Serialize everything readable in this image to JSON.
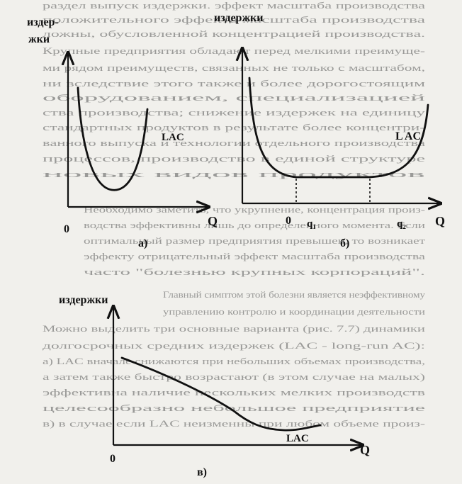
{
  "background_text": [
    "раздел выпуск издержки. эффект масштаба производства",
    "положительного эффекта масштаба производства",
    "ложны, обусловленной концентрацией производства.",
    "Крупные предприятия обладают перед мелкими преимуще-",
    "ми рядом преимуществ, связанных не только с масштабом,",
    "ни вследствие этого также и более дорогостоящим",
    "оборудованием, специализацией",
    "ства производства; снижение издержек на единицу",
    "стандартных продуктов в результате более концентри-",
    "ванного выпуска и технологии отдельного производства",
    "процессов, производство в единой структуре",
    "новых видов продуктов",
    "Необходимо заметить, что укрупнение, концентрация произ-",
    "водства эффективны лишь до определенного момента. Если",
    "оптимальный размер предприятия превышен, то возникает",
    "эффекту отрицательный эффект масштаба производства",
    "часто \"болезнью крупных корпораций\".",
    "Главный симптом этой болезни является неэффективному",
    "управлению контролю и координации деятельности",
    "Можно выделить три основные варианта (рис. 7.7) динамики",
    "долгосрочных средних издержек (LAC - long-run AC):",
    "а) LAC вначале снижаются при небольших объемах производства,",
    "а затем также быстро возрастают (в этом случае на малых)",
    "эффективна наличие нескольких мелких производств",
    "целесообразно небольшое предприятие",
    "в) в случае если LAC неизменны при любом объеме произ-"
  ],
  "panel_a": {
    "ylabel_line1": "издер-",
    "ylabel_line2": "жки",
    "curve_label": "LAC",
    "origin": "0",
    "xlabel": "Q",
    "caption": "а)"
  },
  "panel_b": {
    "ylabel": "издержки",
    "curve_label": "L AC",
    "origin": "0",
    "q1": "q₁",
    "q2": "q₂",
    "xlabel": "Q",
    "caption": "б)"
  },
  "panel_c": {
    "ylabel": "издержки",
    "curve_label": "LAC",
    "origin": "0",
    "xlabel": "Q",
    "caption": "в)"
  }
}
